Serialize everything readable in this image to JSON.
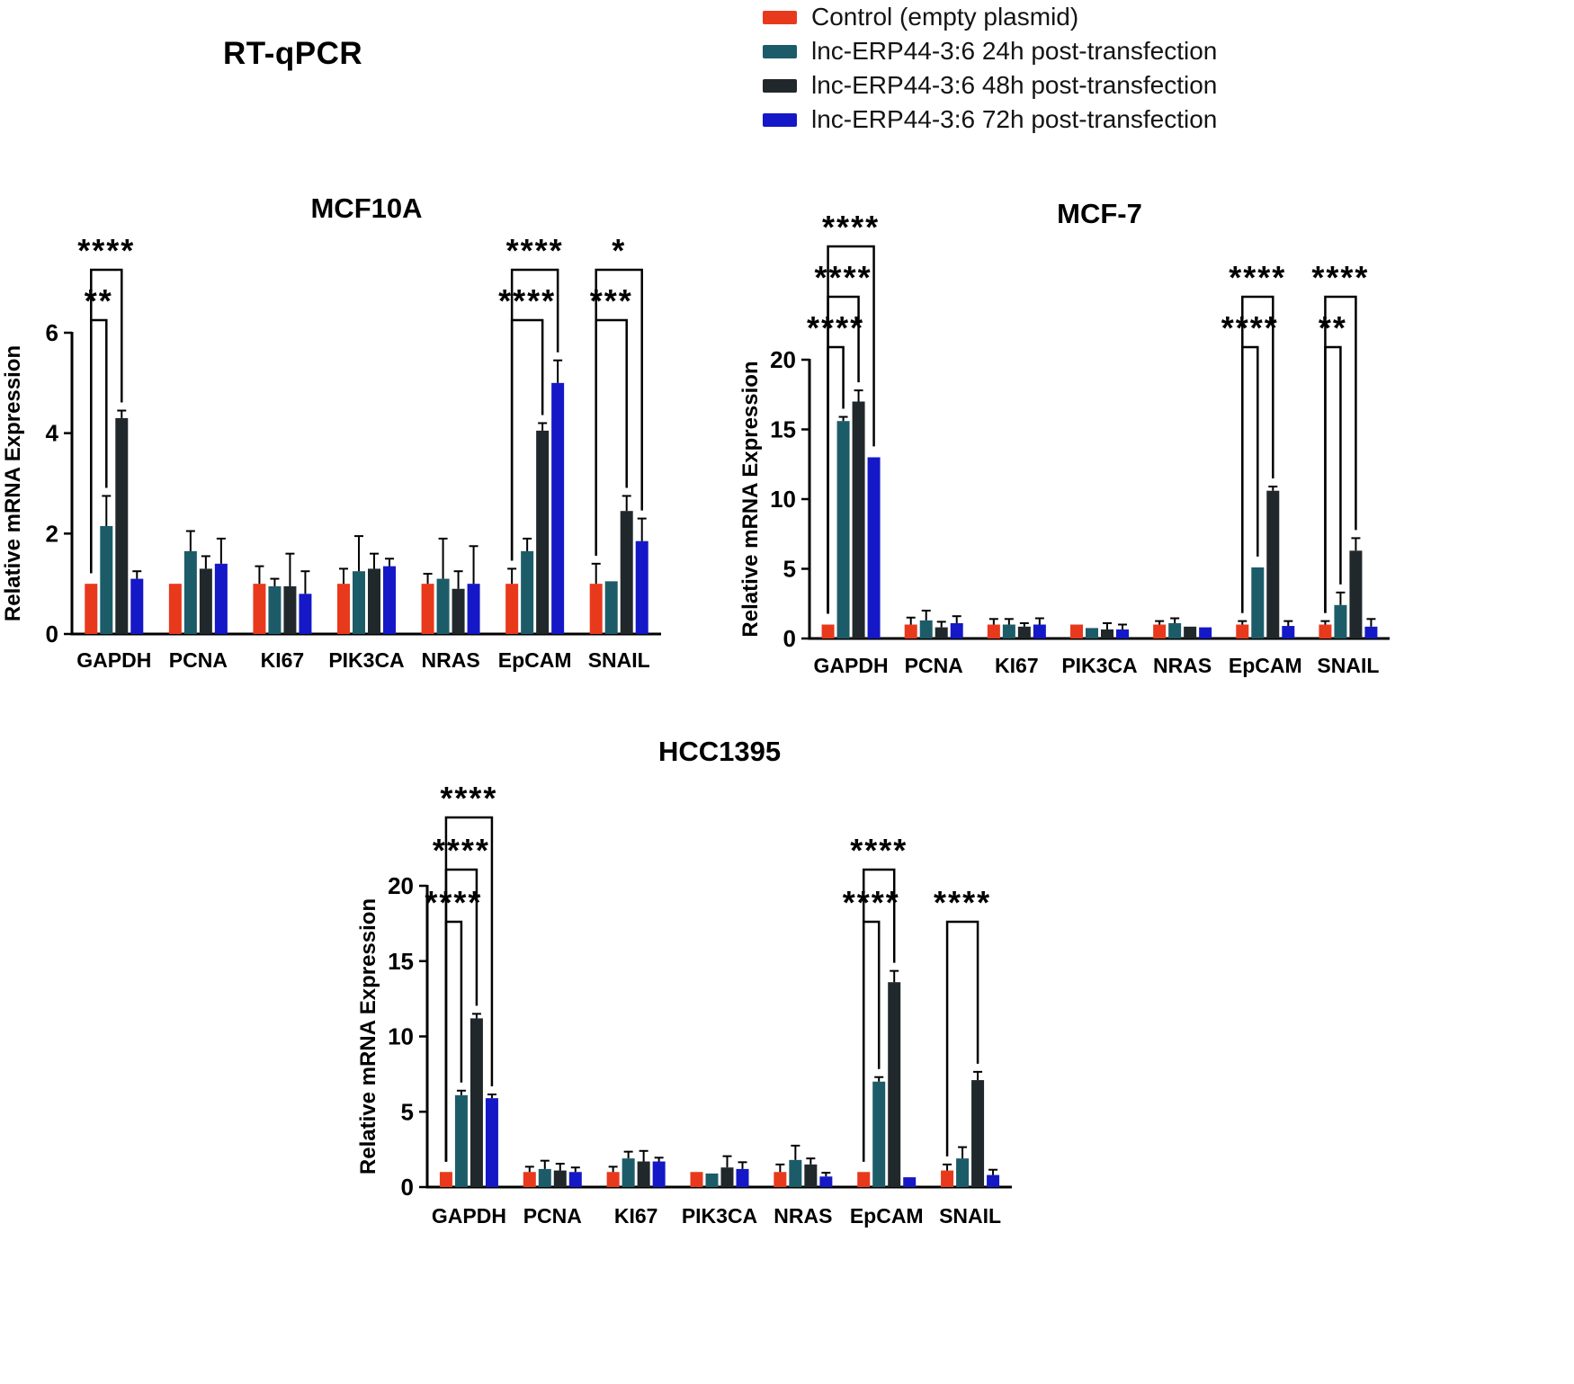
{
  "figure_title": "RT-qPCR",
  "legend": {
    "items": [
      {
        "label": "Control (empty plasmid)",
        "color": "#E8391D"
      },
      {
        "label": "lnc-ERP44-3:6 24h post-transfection",
        "color": "#1C5C68"
      },
      {
        "label": "lnc-ERP44-3:6 48h post-transfection",
        "color": "#21282B"
      },
      {
        "label": "lnc-ERP44-3:6 72h post-transfection",
        "color": "#1518C6"
      }
    ]
  },
  "chart_data": [
    {
      "type": "bar",
      "title": "MCF10A",
      "ylabel": "Relative mRNA Expression",
      "ylim": [
        0,
        6
      ],
      "yticks": [
        0,
        2,
        4,
        6
      ],
      "categories": [
        "GAPDH",
        "PCNA",
        "KI67",
        "PIK3CA",
        "NRAS",
        "EpCAM",
        "SNAIL"
      ],
      "series": [
        {
          "name": "Control (empty plasmid)",
          "color": "#E8391D",
          "values": [
            1.0,
            1.0,
            1.0,
            1.0,
            1.0,
            1.0,
            1.0
          ],
          "errors": [
            0.05,
            0.05,
            0.35,
            0.3,
            0.2,
            0.3,
            0.4
          ]
        },
        {
          "name": "lnc-ERP44-3:6 24h post-transfection",
          "color": "#1C5C68",
          "values": [
            2.15,
            1.65,
            0.95,
            1.25,
            1.1,
            1.65,
            1.05
          ],
          "errors": [
            0.6,
            0.4,
            0.15,
            0.7,
            0.8,
            0.25,
            0.07
          ]
        },
        {
          "name": "lnc-ERP44-3:6 48h post-transfection",
          "color": "#21282B",
          "values": [
            4.3,
            1.3,
            0.95,
            1.3,
            0.9,
            4.05,
            2.45
          ],
          "errors": [
            0.15,
            0.25,
            0.65,
            0.3,
            0.35,
            0.15,
            0.3
          ]
        },
        {
          "name": "lnc-ERP44-3:6 72h post-transfection",
          "color": "#1518C6",
          "values": [
            1.1,
            1.4,
            0.8,
            1.35,
            1.0,
            5.0,
            1.85
          ],
          "errors": [
            0.15,
            0.5,
            0.45,
            0.15,
            0.75,
            0.45,
            0.45
          ]
        }
      ],
      "annotations": [
        {
          "category": "GAPDH",
          "between": [
            0,
            1
          ],
          "row": 0,
          "stars": "**"
        },
        {
          "category": "GAPDH",
          "between": [
            0,
            2
          ],
          "row": 1,
          "stars": "****"
        },
        {
          "category": "EpCAM",
          "between": [
            0,
            2
          ],
          "row": 0,
          "stars": "****"
        },
        {
          "category": "EpCAM",
          "between": [
            0,
            3
          ],
          "row": 1,
          "stars": "****"
        },
        {
          "category": "SNAIL",
          "between": [
            0,
            2
          ],
          "row": 0,
          "stars": "***"
        },
        {
          "category": "SNAIL",
          "between": [
            0,
            3
          ],
          "row": 1,
          "stars": "*"
        }
      ]
    },
    {
      "type": "bar",
      "title": "MCF-7",
      "ylabel": "Relative mRNA Expression",
      "ylim": [
        0,
        20
      ],
      "yticks": [
        0,
        5,
        10,
        15,
        20
      ],
      "categories": [
        "GAPDH",
        "PCNA",
        "KI67",
        "PIK3CA",
        "NRAS",
        "EpCAM",
        "SNAIL"
      ],
      "series": [
        {
          "name": "Control (empty plasmid)",
          "color": "#E8391D",
          "values": [
            1.0,
            1.0,
            1.0,
            1.0,
            1.0,
            1.0,
            1.0
          ],
          "errors": [
            0.2,
            0.5,
            0.4,
            0.1,
            0.25,
            0.25,
            0.25
          ]
        },
        {
          "name": "lnc-ERP44-3:6 24h post-transfection",
          "color": "#1C5C68",
          "values": [
            15.6,
            1.3,
            1.0,
            0.75,
            1.1,
            5.1,
            2.4
          ],
          "errors": [
            0.3,
            0.7,
            0.4,
            0.1,
            0.35,
            0.2,
            0.9
          ]
        },
        {
          "name": "lnc-ERP44-3:6 48h post-transfection",
          "color": "#21282B",
          "values": [
            17.0,
            0.8,
            0.85,
            0.65,
            0.85,
            10.6,
            6.3
          ],
          "errors": [
            0.8,
            0.4,
            0.25,
            0.45,
            0.1,
            0.3,
            0.9
          ]
        },
        {
          "name": "lnc-ERP44-3:6 72h post-transfection",
          "color": "#1518C6",
          "values": [
            13.0,
            1.1,
            1.0,
            0.65,
            0.8,
            0.9,
            0.85
          ],
          "errors": [
            0.2,
            0.5,
            0.45,
            0.35,
            0.1,
            0.35,
            0.55
          ]
        }
      ],
      "annotations": [
        {
          "category": "GAPDH",
          "between": [
            0,
            1
          ],
          "row": 0,
          "stars": "****"
        },
        {
          "category": "GAPDH",
          "between": [
            0,
            2
          ],
          "row": 1,
          "stars": "****"
        },
        {
          "category": "GAPDH",
          "between": [
            0,
            3
          ],
          "row": 2,
          "stars": "****"
        },
        {
          "category": "EpCAM",
          "between": [
            0,
            1
          ],
          "row": 0,
          "stars": "****"
        },
        {
          "category": "EpCAM",
          "between": [
            0,
            2
          ],
          "row": 1,
          "stars": "****"
        },
        {
          "category": "SNAIL",
          "between": [
            0,
            1
          ],
          "row": 0,
          "stars": "**"
        },
        {
          "category": "SNAIL",
          "between": [
            0,
            2
          ],
          "row": 1,
          "stars": "****"
        }
      ]
    },
    {
      "type": "bar",
      "title": "HCC1395",
      "ylabel": "Relative mRNA Expression",
      "ylim": [
        0,
        20
      ],
      "yticks": [
        0,
        5,
        10,
        15,
        20
      ],
      "categories": [
        "GAPDH",
        "PCNA",
        "KI67",
        "PIK3CA",
        "NRAS",
        "EpCAM",
        "SNAIL"
      ],
      "series": [
        {
          "name": "Control (empty plasmid)",
          "color": "#E8391D",
          "values": [
            1.0,
            1.0,
            1.0,
            1.0,
            1.0,
            1.0,
            1.1
          ],
          "errors": [
            0.15,
            0.35,
            0.35,
            0.2,
            0.5,
            0.15,
            0.4
          ]
        },
        {
          "name": "lnc-ERP44-3:6 24h post-transfection",
          "color": "#1C5C68",
          "values": [
            6.1,
            1.2,
            1.9,
            0.9,
            1.8,
            7.0,
            1.9
          ],
          "errors": [
            0.3,
            0.55,
            0.45,
            0.15,
            0.95,
            0.3,
            0.75
          ]
        },
        {
          "name": "lnc-ERP44-3:6 48h post-transfection",
          "color": "#21282B",
          "values": [
            11.2,
            1.1,
            1.7,
            1.3,
            1.5,
            13.6,
            7.1
          ],
          "errors": [
            0.3,
            0.45,
            0.7,
            0.75,
            0.4,
            0.75,
            0.55
          ]
        },
        {
          "name": "lnc-ERP44-3:6 72h post-transfection",
          "color": "#1518C6",
          "values": [
            5.9,
            1.0,
            1.7,
            1.2,
            0.7,
            0.65,
            0.8
          ],
          "errors": [
            0.25,
            0.3,
            0.25,
            0.45,
            0.25,
            0.2,
            0.35
          ]
        }
      ],
      "annotations": [
        {
          "category": "GAPDH",
          "between": [
            0,
            1
          ],
          "row": 0,
          "stars": "****"
        },
        {
          "category": "GAPDH",
          "between": [
            0,
            2
          ],
          "row": 1,
          "stars": "****"
        },
        {
          "category": "GAPDH",
          "between": [
            0,
            3
          ],
          "row": 2,
          "stars": "****"
        },
        {
          "category": "EpCAM",
          "between": [
            0,
            1
          ],
          "row": 0,
          "stars": "****"
        },
        {
          "category": "EpCAM",
          "between": [
            0,
            2
          ],
          "row": 1,
          "stars": "****"
        },
        {
          "category": "SNAIL",
          "between": [
            0,
            2
          ],
          "row": 0,
          "stars": "****"
        }
      ]
    }
  ]
}
